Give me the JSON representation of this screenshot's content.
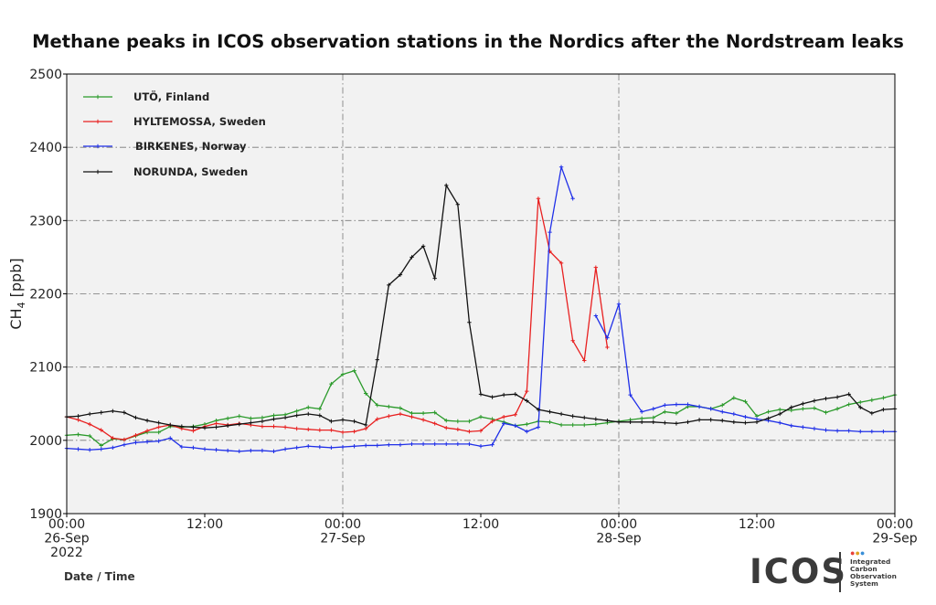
{
  "chart_data": {
    "type": "line",
    "title": "Methane peaks in ICOS observation stations in the Nordics after the Nordstream leaks",
    "ylabel_main": "CH",
    "ylabel_sub": "4",
    "ylabel_unit": " [ppb]",
    "xlabel": "Date / Time",
    "ylim": [
      1900,
      2500
    ],
    "xlim_hours": [
      0,
      72
    ],
    "yticks": [
      "1900",
      "2000",
      "2100",
      "2200",
      "2300",
      "2400",
      "2500"
    ],
    "xticks": [
      {
        "h": 0,
        "lines": [
          "00:00",
          "26-Sep",
          "2022"
        ]
      },
      {
        "h": 12,
        "lines": [
          "12:00"
        ]
      },
      {
        "h": 24,
        "lines": [
          "00:00",
          "27-Sep"
        ]
      },
      {
        "h": 36,
        "lines": [
          "12:00"
        ]
      },
      {
        "h": 48,
        "lines": [
          "00:00",
          "28-Sep"
        ]
      },
      {
        "h": 60,
        "lines": [
          "12:00"
        ]
      },
      {
        "h": 72,
        "lines": [
          "00:00",
          "29-Sep"
        ]
      }
    ],
    "grid": true,
    "legend_position": "top-left",
    "series": [
      {
        "name": "UTÖ, Finland",
        "color": "#2a9a2a",
        "x": [
          0,
          1,
          2,
          3,
          4,
          5,
          6,
          7,
          8,
          9,
          10,
          11,
          12,
          13,
          14,
          15,
          16,
          17,
          18,
          19,
          20,
          21,
          22,
          23,
          24,
          25,
          26,
          27,
          28,
          29,
          30,
          31,
          32,
          33,
          34,
          35,
          36,
          37,
          38,
          39,
          40,
          41,
          42,
          43,
          44,
          45,
          46,
          47,
          48,
          49,
          50,
          51,
          52,
          53,
          54,
          55,
          56,
          57,
          58,
          59,
          60,
          61,
          62,
          63,
          64,
          65,
          66,
          67,
          68,
          69,
          70,
          71,
          72
        ],
        "values": [
          2007,
          2008,
          2006,
          1993,
          2002,
          2001,
          2006,
          2011,
          2011,
          2019,
          2018,
          2019,
          2022,
          2027,
          2030,
          2033,
          2030,
          2031,
          2034,
          2035,
          2040,
          2045,
          2043,
          2077,
          2090,
          2095,
          2064,
          2048,
          2046,
          2044,
          2037,
          2037,
          2038,
          2027,
          2026,
          2026,
          2032,
          2029,
          2025,
          2020,
          2022,
          2026,
          2025,
          2021,
          2021,
          2021,
          2022,
          2024,
          2026,
          2028,
          2030,
          2031,
          2039,
          2037,
          2046,
          2046,
          2043,
          2048,
          2058,
          2053,
          2033,
          2039,
          2042,
          2041,
          2043,
          2044,
          2038,
          2043,
          2049,
          2052,
          2055,
          2058,
          2062
        ]
      },
      {
        "name": "HYLTEMOSSA, Sweden",
        "color": "#e82020",
        "x": [
          0,
          1,
          2,
          3,
          4,
          5,
          6,
          7,
          8,
          9,
          10,
          11,
          12,
          13,
          14,
          15,
          16,
          17,
          18,
          19,
          20,
          21,
          22,
          23,
          24,
          25,
          26,
          27,
          28,
          29,
          30,
          31,
          32,
          33,
          34,
          35,
          36,
          37,
          38,
          39,
          40,
          41,
          42,
          43,
          44,
          45,
          46,
          47,
          48
        ],
        "values": [
          2032,
          2028,
          2022,
          2014,
          2003,
          2001,
          2007,
          2013,
          2018,
          2021,
          2016,
          2013,
          2019,
          2023,
          2021,
          2023,
          2021,
          2019,
          2019,
          2018,
          2016,
          2015,
          2014,
          2014,
          2011,
          2012,
          2016,
          2029,
          2033,
          2036,
          2032,
          2028,
          2023,
          2017,
          2015,
          2012,
          2013,
          2026,
          2032,
          2035,
          2067,
          2330,
          2258,
          2242,
          2136,
          2109,
          2236,
          2127,
          null
        ]
      },
      {
        "name": "BIRKENES, Norway",
        "color": "#1f2fe8",
        "x": [
          0,
          1,
          2,
          3,
          4,
          5,
          6,
          7,
          8,
          9,
          10,
          11,
          12,
          13,
          14,
          15,
          16,
          17,
          18,
          19,
          20,
          21,
          22,
          23,
          24,
          25,
          26,
          27,
          28,
          29,
          30,
          31,
          32,
          33,
          34,
          35,
          36,
          37,
          38,
          39,
          40,
          41,
          42,
          43,
          44,
          45,
          46,
          47,
          48,
          49,
          50,
          51,
          52,
          53,
          54,
          55,
          56,
          57,
          58,
          59,
          60,
          61,
          62,
          63,
          64,
          65,
          66,
          67,
          68,
          69,
          70,
          71,
          72
        ],
        "values": [
          1989,
          1988,
          1987,
          1988,
          1990,
          1994,
          1997,
          1998,
          1999,
          2003,
          1991,
          1990,
          1988,
          1987,
          1986,
          1985,
          1986,
          1986,
          1985,
          1988,
          1990,
          1992,
          1991,
          1990,
          1991,
          1992,
          1993,
          1993,
          1994,
          1994,
          1995,
          1995,
          1995,
          1995,
          1995,
          1995,
          1992,
          1994,
          2023,
          2020,
          2012,
          2018,
          2284,
          2373,
          2330,
          null,
          2170,
          2140,
          2186,
          2062,
          2039,
          2043,
          2048,
          2049,
          2049,
          2046,
          2043,
          2039,
          2036,
          2032,
          2029,
          2027,
          2024,
          2020,
          2018,
          2016,
          2014,
          2013,
          2013,
          2012,
          2012,
          2012,
          2012
        ]
      },
      {
        "name": "NORUNDA, Sweden",
        "color": "#111111",
        "x": [
          0,
          1,
          2,
          3,
          4,
          5,
          6,
          7,
          8,
          9,
          10,
          11,
          12,
          13,
          14,
          15,
          16,
          17,
          18,
          19,
          20,
          21,
          22,
          23,
          24,
          25,
          26,
          27,
          28,
          29,
          30,
          31,
          32,
          33,
          34,
          35,
          36,
          37,
          38,
          39,
          40,
          41,
          42,
          43,
          44,
          45,
          46,
          47,
          48,
          49,
          50,
          51,
          52,
          53,
          54,
          55,
          56,
          57,
          58,
          59,
          60,
          61,
          62,
          63,
          64,
          65,
          66,
          67,
          68,
          69,
          70,
          71,
          72
        ],
        "values": [
          2032,
          2033,
          2036,
          2038,
          2040,
          2038,
          2031,
          2027,
          2024,
          2021,
          2019,
          2018,
          2017,
          2018,
          2020,
          2022,
          2024,
          2026,
          2029,
          2031,
          2034,
          2036,
          2034,
          2026,
          2028,
          2026,
          2021,
          2110,
          2212,
          2226,
          2250,
          2265,
          2221,
          2348,
          2322,
          2161,
          2063,
          2059,
          2062,
          2063,
          2054,
          2042,
          2039,
          2036,
          2033,
          2031,
          2029,
          2027,
          2025,
          2025,
          2025,
          2025,
          2024,
          2023,
          2025,
          2028,
          2028,
          2027,
          2025,
          2024,
          2025,
          2030,
          2036,
          2045,
          2050,
          2054,
          2057,
          2059,
          2063,
          2045,
          2037,
          2042,
          2043
        ]
      }
    ]
  },
  "branding": {
    "logo_text": "ICOS",
    "logo_sub": [
      "Integrated",
      "Carbon",
      "Observation",
      "System"
    ],
    "dot_colors": [
      "#e8423a",
      "#e0a020",
      "#3a8fd8"
    ]
  }
}
